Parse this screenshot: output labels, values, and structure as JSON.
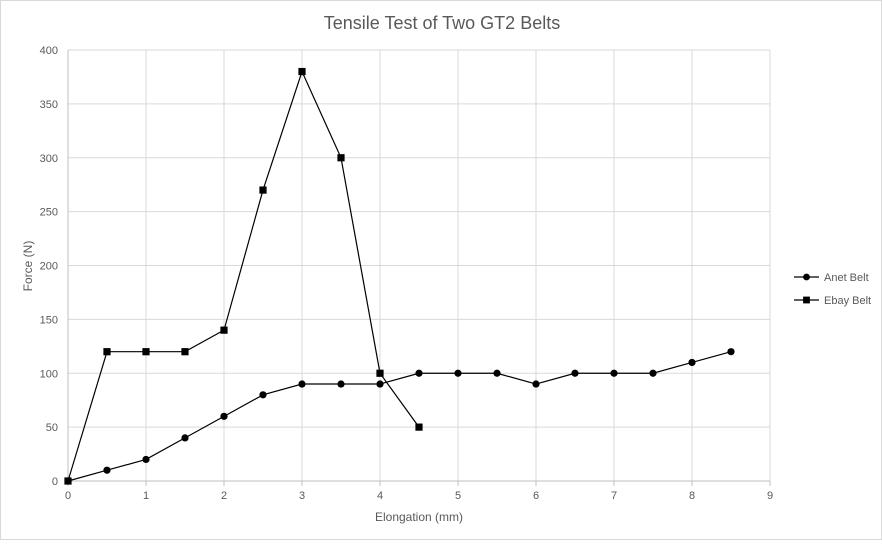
{
  "chart_data": {
    "type": "line",
    "title": "Tensile Test of Two GT2 Belts",
    "xlabel": "Elongation (mm)",
    "ylabel": "Force (N)",
    "xlim": [
      0,
      9
    ],
    "ylim": [
      0,
      400
    ],
    "xticks": [
      "0",
      "1",
      "2",
      "3",
      "4",
      "5",
      "6",
      "7",
      "8",
      "9"
    ],
    "yticks": [
      "0",
      "50",
      "100",
      "150",
      "200",
      "250",
      "300",
      "350",
      "400"
    ],
    "grid": true,
    "legend_position": "right",
    "series": [
      {
        "name": "Anet Belt",
        "marker": "circle",
        "color": "#000000",
        "points": [
          [
            0,
            0
          ],
          [
            0.5,
            10
          ],
          [
            1,
            20
          ],
          [
            1.5,
            40
          ],
          [
            2,
            60
          ],
          [
            2.5,
            80
          ],
          [
            3,
            90
          ],
          [
            3.5,
            90
          ],
          [
            4,
            90
          ],
          [
            4.5,
            100
          ],
          [
            5,
            100
          ],
          [
            5.5,
            100
          ],
          [
            6,
            90
          ],
          [
            6.5,
            100
          ],
          [
            7,
            100
          ],
          [
            7.5,
            100
          ],
          [
            8,
            110
          ],
          [
            8.5,
            120
          ]
        ]
      },
      {
        "name": "Ebay Belt",
        "marker": "square",
        "color": "#000000",
        "points": [
          [
            0,
            0
          ],
          [
            0.5,
            120
          ],
          [
            1,
            120
          ],
          [
            1.5,
            120
          ],
          [
            2,
            140
          ],
          [
            2.5,
            270
          ],
          [
            3,
            380
          ],
          [
            3.5,
            300
          ],
          [
            4,
            100
          ],
          [
            4.5,
            50
          ]
        ]
      }
    ]
  }
}
